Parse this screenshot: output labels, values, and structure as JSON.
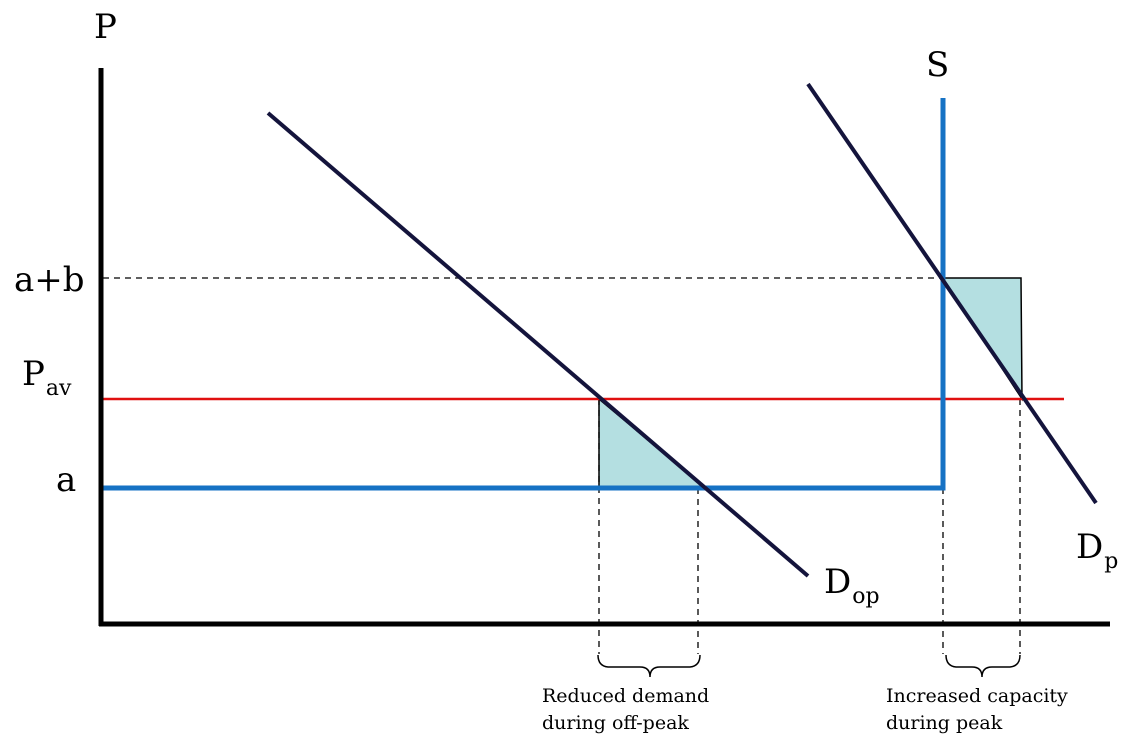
{
  "colors": {
    "axis": "#000000",
    "supply": "#1672c4",
    "demand": "#14143c",
    "average_price": "#e01010",
    "shading": "#b4dfe1"
  },
  "axis": {
    "y_label": "P"
  },
  "price_levels": {
    "high": "a+b",
    "average_main": "P",
    "average_sub": "av",
    "low": "a"
  },
  "curves": {
    "supply": "S",
    "offpeak_demand_main": "D",
    "offpeak_demand_sub": "op",
    "peak_demand_main": "D",
    "peak_demand_sub": "p"
  },
  "annotations": {
    "offpeak_line1": "Reduced demand",
    "offpeak_line2": "during off-peak",
    "peak_line1": "Increased capacity",
    "peak_line2": "during peak"
  }
}
